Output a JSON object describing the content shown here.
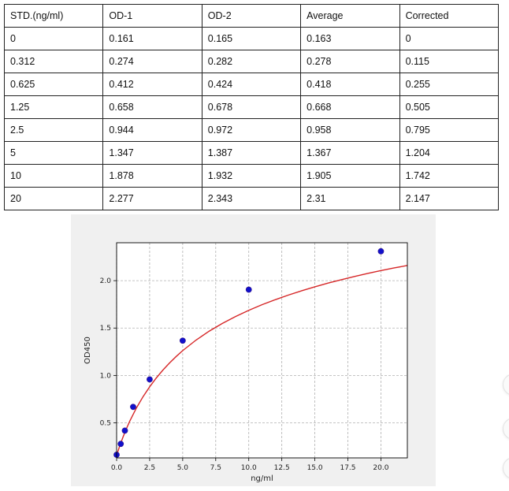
{
  "chart_data": [
    {
      "type": "table",
      "columns": [
        "STD.(ng/ml)",
        "OD-1",
        "OD-2",
        "Average",
        "Corrected"
      ],
      "rows": [
        [
          "0",
          "0.161",
          "0.165",
          "0.163",
          "0"
        ],
        [
          "0.312",
          "0.274",
          "0.282",
          "0.278",
          "0.115"
        ],
        [
          "0.625",
          "0.412",
          "0.424",
          "0.418",
          "0.255"
        ],
        [
          "1.25",
          "0.658",
          "0.678",
          "0.668",
          "0.505"
        ],
        [
          "2.5",
          "0.944",
          "0.972",
          "0.958",
          "0.795"
        ],
        [
          "5",
          "1.347",
          "1.387",
          "1.367",
          "1.204"
        ],
        [
          "10",
          "1.878",
          "1.932",
          "1.905",
          "1.742"
        ],
        [
          "20",
          "2.277",
          "2.343",
          "2.31",
          "2.147"
        ]
      ]
    },
    {
      "type": "scatter",
      "xlabel": "ng/ml",
      "ylabel": "OD450",
      "xlim": [
        0,
        22
      ],
      "ylim": [
        0.13,
        2.4
      ],
      "xticks": [
        "0.0",
        "2.5",
        "5.0",
        "7.5",
        "10.0",
        "12.5",
        "15.0",
        "17.5",
        "20.0"
      ],
      "yticks": [
        "0.5",
        "1.0",
        "1.5",
        "2.0"
      ],
      "grid": true,
      "series": [
        {
          "x": [
            0,
            0.312,
            0.625,
            1.25,
            2.5,
            5,
            10,
            20
          ],
          "y": [
            0.163,
            0.278,
            0.418,
            0.668,
            0.958,
            1.367,
            1.905,
            2.31
          ]
        }
      ],
      "fit_curve": {
        "x": [
          0,
          0.25,
          0.5,
          0.75,
          1,
          1.5,
          2,
          2.5,
          3,
          3.5,
          4,
          4.5,
          5,
          6,
          7,
          8,
          9,
          10,
          11,
          12,
          13,
          14,
          15,
          16,
          17,
          18,
          19,
          20,
          21,
          22
        ],
        "y": [
          0.158,
          0.262,
          0.356,
          0.441,
          0.519,
          0.657,
          0.776,
          0.88,
          0.973,
          1.056,
          1.131,
          1.199,
          1.262,
          1.372,
          1.467,
          1.549,
          1.622,
          1.687,
          1.746,
          1.799,
          1.848,
          1.893,
          1.935,
          1.974,
          2.01,
          2.044,
          2.076,
          2.106,
          2.134,
          2.16
        ]
      },
      "colors": {
        "points": "#1010cc",
        "curve": "#d62728",
        "grid": "#b0b0b0"
      }
    }
  ]
}
